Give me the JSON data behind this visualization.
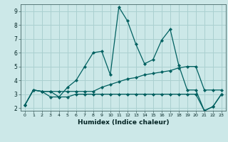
{
  "xlabel": "Humidex (Indice chaleur)",
  "bg_color": "#cce8e8",
  "grid_color": "#aad0d0",
  "line_color": "#006060",
  "xlim": [
    -0.5,
    23.5
  ],
  "ylim": [
    1.8,
    9.5
  ],
  "xticks": [
    0,
    1,
    2,
    3,
    4,
    5,
    6,
    7,
    8,
    9,
    10,
    11,
    12,
    13,
    14,
    15,
    16,
    17,
    18,
    19,
    20,
    21,
    22,
    23
  ],
  "yticks": [
    2,
    3,
    4,
    5,
    6,
    7,
    8,
    9
  ],
  "series": [
    [
      2.2,
      3.3,
      3.2,
      2.8,
      2.8,
      3.5,
      4.0,
      5.0,
      6.0,
      6.1,
      4.4,
      9.3,
      8.3,
      6.6,
      5.2,
      5.5,
      6.9,
      7.7,
      5.1,
      3.3,
      3.3,
      1.8,
      2.1,
      3.0
    ],
    [
      2.2,
      3.3,
      3.2,
      3.2,
      3.2,
      3.2,
      3.2,
      3.2,
      3.2,
      3.5,
      3.7,
      3.9,
      4.1,
      4.2,
      4.4,
      4.5,
      4.6,
      4.7,
      4.9,
      5.0,
      5.0,
      3.3,
      3.3,
      3.3
    ],
    [
      2.2,
      3.3,
      3.2,
      3.2,
      2.8,
      2.8,
      3.0,
      3.0,
      3.0,
      3.0,
      3.0,
      3.0,
      3.0,
      3.0,
      3.0,
      3.0,
      3.0,
      3.0,
      3.0,
      3.0,
      3.0,
      1.8,
      2.1,
      3.0
    ]
  ]
}
